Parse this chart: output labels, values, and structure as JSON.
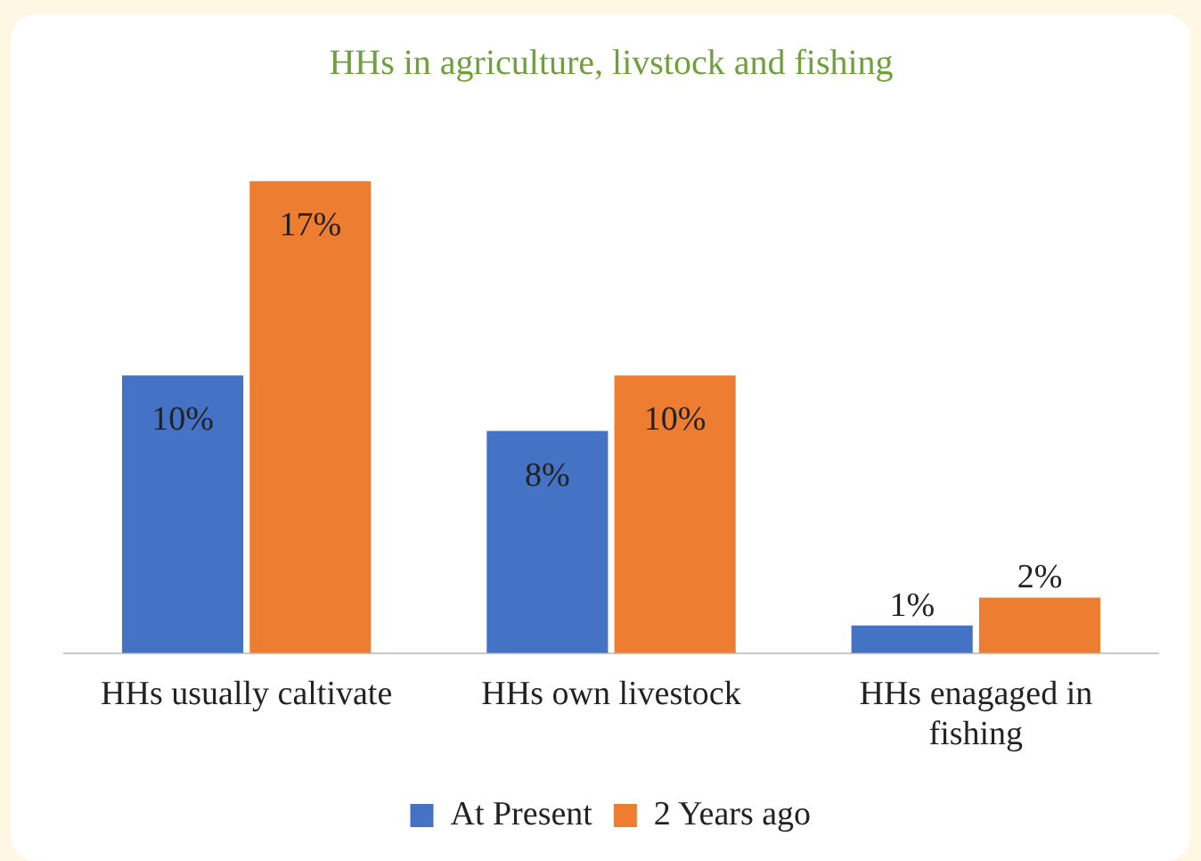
{
  "chart_data": {
    "type": "bar",
    "title": "HHs in agriculture, livstock and fishing",
    "categories": [
      "HHs usually caltivate",
      "HHs own livestock",
      "HHs enagaged in fishing"
    ],
    "series": [
      {
        "name": "At Present",
        "color": "#4472c4",
        "values": [
          10,
          8,
          1
        ],
        "value_labels": [
          "10%",
          "8%",
          "1%"
        ]
      },
      {
        "name": "2 Years ago",
        "color": "#ed7d31",
        "values": [
          17,
          10,
          2
        ],
        "value_labels": [
          "17%",
          "10%",
          "2%"
        ]
      }
    ],
    "legend": "bottom",
    "grid": false
  }
}
